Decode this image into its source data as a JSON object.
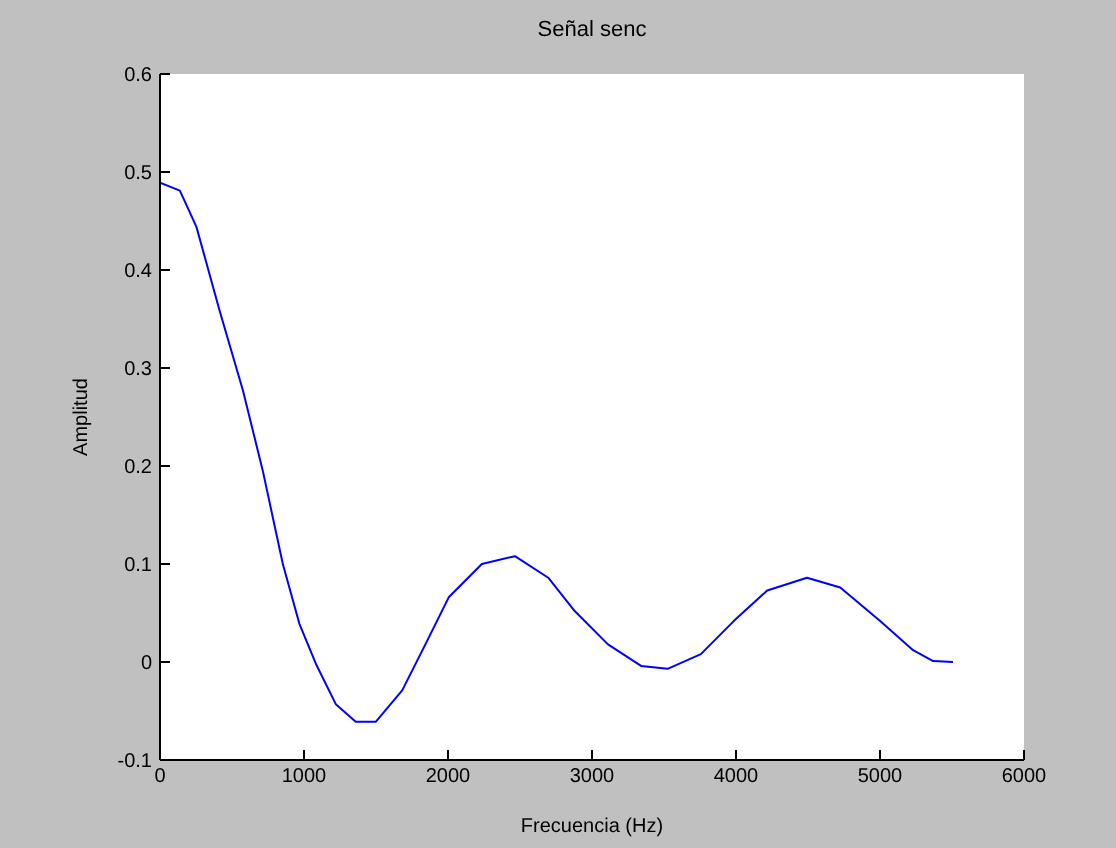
{
  "chart_data": {
    "type": "line",
    "title": "Señal senc",
    "xlabel": "Frecuencia (Hz)",
    "ylabel": "Amplitud",
    "x": [
      0,
      138,
      253,
      415,
      576,
      714,
      853,
      968,
      1083,
      1221,
      1359,
      1498,
      1682,
      1843,
      2005,
      2235,
      2465,
      2696,
      2880,
      3111,
      3341,
      3525,
      3756,
      3986,
      4217,
      4493,
      4724,
      4999,
      5230,
      5369,
      5507
    ],
    "series": [
      {
        "color": "#0000ff",
        "values": [
          0.489,
          0.481,
          0.444,
          0.358,
          0.277,
          0.195,
          0.1,
          0.039,
          -0.002,
          -0.043,
          -0.061,
          -0.061,
          -0.029,
          0.018,
          0.066,
          0.1,
          0.108,
          0.086,
          0.052,
          0.018,
          -0.004,
          -0.007,
          0.008,
          0.042,
          0.073,
          0.086,
          0.076,
          0.042,
          0.012,
          0.001,
          0
        ]
      }
    ],
    "xlim": [
      0,
      6000
    ],
    "xticks": [
      0,
      1000,
      2000,
      3000,
      4000,
      5000,
      6000
    ],
    "ylim": [
      -0.1,
      0.6
    ],
    "yticks": [
      -0.1,
      0,
      0.1,
      0.2,
      0.3,
      0.4,
      0.5,
      0.6
    ],
    "grid": false,
    "legend": false,
    "marker": "none",
    "line_style": "solid"
  }
}
